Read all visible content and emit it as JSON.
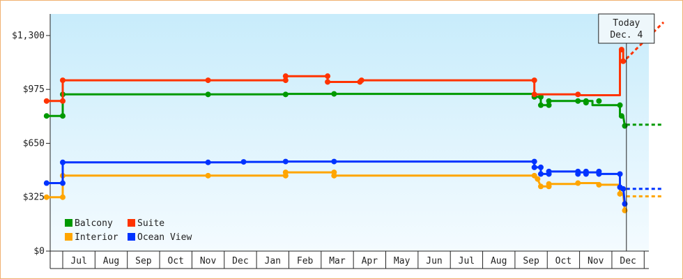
{
  "colors": {
    "balcony": "#009900",
    "suite": "#ff3300",
    "interior": "#ffa500",
    "ocean_view": "#0033ff",
    "bg_top": "#c8ecfb",
    "bg_bottom": "#f4fbff"
  },
  "today_label": {
    "line1": "Today",
    "line2": "Dec. 4"
  },
  "chart_data": {
    "type": "line",
    "step": true,
    "ylim": [
      0,
      1430
    ],
    "yticks": [
      0,
      325,
      650,
      975,
      1300
    ],
    "ytick_labels": [
      "$0",
      "$325",
      "$650",
      "$975",
      "$1,300"
    ],
    "xlabels": [
      "Jul",
      "Aug",
      "Sep",
      "Oct",
      "Nov",
      "Dec",
      "Jan",
      "Feb",
      "Mar",
      "Apr",
      "May",
      "Jun",
      "Jul",
      "Aug",
      "Sep",
      "Oct",
      "Nov",
      "Dec"
    ],
    "grid": false,
    "legend_position": "bottom-left",
    "today_x": 17.45,
    "projection_end_x": 18.6,
    "series": [
      {
        "name": "Balcony",
        "color": "balcony",
        "points": [
          [
            -0.5,
            815
          ],
          [
            0,
            815
          ],
          [
            0,
            945
          ],
          [
            4.5,
            945
          ],
          [
            6.9,
            945
          ],
          [
            6.9,
            948
          ],
          [
            8.4,
            948
          ],
          [
            14.6,
            948
          ],
          [
            14.6,
            930
          ],
          [
            14.8,
            930
          ],
          [
            14.8,
            880
          ],
          [
            15.05,
            880
          ],
          [
            15.05,
            905
          ],
          [
            16.2,
            905
          ],
          [
            16.4,
            905
          ],
          [
            16.4,
            880
          ],
          [
            17.25,
            880
          ],
          [
            17.25,
            815
          ],
          [
            17.35,
            815
          ],
          [
            17.4,
            755
          ],
          [
            17.45,
            755
          ]
        ],
        "markers": [
          [
            -0.5,
            815
          ],
          [
            0,
            815
          ],
          [
            0,
            945
          ],
          [
            4.5,
            945
          ],
          [
            6.9,
            945
          ],
          [
            8.4,
            948
          ],
          [
            14.6,
            930
          ],
          [
            14.8,
            930
          ],
          [
            14.8,
            880
          ],
          [
            15.05,
            880
          ],
          [
            15.05,
            905
          ],
          [
            15.95,
            905
          ],
          [
            16.2,
            905
          ],
          [
            16.2,
            895
          ],
          [
            16.6,
            905
          ],
          [
            17.25,
            880
          ],
          [
            17.3,
            815
          ],
          [
            17.4,
            755
          ]
        ],
        "projection": [
          [
            17.45,
            762
          ],
          [
            18.6,
            762
          ]
        ]
      },
      {
        "name": "Suite",
        "color": "suite",
        "points": [
          [
            -0.5,
            905
          ],
          [
            0,
            905
          ],
          [
            0,
            1030
          ],
          [
            4.5,
            1030
          ],
          [
            6.9,
            1030
          ],
          [
            6.9,
            1055
          ],
          [
            8.2,
            1055
          ],
          [
            8.2,
            1020
          ],
          [
            9.2,
            1020
          ],
          [
            9.2,
            1030
          ],
          [
            14.6,
            1030
          ],
          [
            14.6,
            945
          ],
          [
            15.9,
            945
          ],
          [
            15.9,
            940
          ],
          [
            17.25,
            940
          ],
          [
            17.25,
            1215
          ],
          [
            17.35,
            1215
          ],
          [
            17.35,
            1145
          ],
          [
            17.45,
            1145
          ]
        ],
        "markers": [
          [
            -0.5,
            905
          ],
          [
            0,
            905
          ],
          [
            0,
            1030
          ],
          [
            4.5,
            1030
          ],
          [
            6.9,
            1030
          ],
          [
            6.9,
            1055
          ],
          [
            8.2,
            1055
          ],
          [
            8.2,
            1020
          ],
          [
            9.2,
            1020
          ],
          [
            9.25,
            1030
          ],
          [
            14.6,
            1030
          ],
          [
            14.6,
            945
          ],
          [
            15.95,
            945
          ],
          [
            17.3,
            1215
          ],
          [
            17.35,
            1145
          ]
        ],
        "projection": [
          [
            17.45,
            1160
          ],
          [
            18.6,
            1380
          ]
        ]
      },
      {
        "name": "Interior",
        "color": "interior",
        "points": [
          [
            -0.5,
            325
          ],
          [
            0,
            325
          ],
          [
            0,
            455
          ],
          [
            4.5,
            455
          ],
          [
            6.9,
            455
          ],
          [
            6.9,
            475
          ],
          [
            8.4,
            475
          ],
          [
            8.4,
            455
          ],
          [
            14.6,
            455
          ],
          [
            14.7,
            435
          ],
          [
            14.8,
            390
          ],
          [
            15.05,
            390
          ],
          [
            15.05,
            405
          ],
          [
            15.95,
            405
          ],
          [
            15.95,
            410
          ],
          [
            16.6,
            410
          ],
          [
            16.6,
            400
          ],
          [
            17.25,
            400
          ],
          [
            17.25,
            345
          ],
          [
            17.35,
            345
          ],
          [
            17.4,
            245
          ],
          [
            17.45,
            245
          ]
        ],
        "markers": [
          [
            -0.5,
            325
          ],
          [
            0,
            325
          ],
          [
            0,
            455
          ],
          [
            4.5,
            455
          ],
          [
            6.9,
            455
          ],
          [
            6.9,
            475
          ],
          [
            8.4,
            475
          ],
          [
            8.4,
            455
          ],
          [
            14.6,
            455
          ],
          [
            14.7,
            435
          ],
          [
            14.8,
            390
          ],
          [
            15.05,
            390
          ],
          [
            15.05,
            405
          ],
          [
            15.95,
            410
          ],
          [
            16.6,
            400
          ],
          [
            17.25,
            345
          ],
          [
            17.4,
            245
          ]
        ],
        "projection": [
          [
            17.45,
            330
          ],
          [
            18.6,
            330
          ]
        ]
      },
      {
        "name": "Ocean View",
        "color": "ocean_view",
        "points": [
          [
            -0.5,
            410
          ],
          [
            0,
            410
          ],
          [
            0,
            535
          ],
          [
            4.5,
            535
          ],
          [
            5.6,
            535
          ],
          [
            5.6,
            538
          ],
          [
            6.9,
            538
          ],
          [
            6.9,
            540
          ],
          [
            8.4,
            540
          ],
          [
            14.6,
            540
          ],
          [
            14.6,
            505
          ],
          [
            14.8,
            505
          ],
          [
            14.8,
            465
          ],
          [
            15.05,
            465
          ],
          [
            15.05,
            480
          ],
          [
            15.95,
            480
          ],
          [
            15.95,
            475
          ],
          [
            16.6,
            475
          ],
          [
            16.6,
            465
          ],
          [
            17.25,
            465
          ],
          [
            17.25,
            385
          ],
          [
            17.35,
            385
          ],
          [
            17.4,
            285
          ],
          [
            17.45,
            285
          ]
        ],
        "markers": [
          [
            -0.5,
            410
          ],
          [
            0,
            410
          ],
          [
            0,
            535
          ],
          [
            4.5,
            535
          ],
          [
            5.6,
            538
          ],
          [
            6.9,
            540
          ],
          [
            8.4,
            540
          ],
          [
            14.6,
            540
          ],
          [
            14.6,
            505
          ],
          [
            14.8,
            505
          ],
          [
            14.8,
            465
          ],
          [
            15.05,
            465
          ],
          [
            15.05,
            480
          ],
          [
            15.95,
            480
          ],
          [
            15.95,
            465
          ],
          [
            16.2,
            480
          ],
          [
            16.2,
            465
          ],
          [
            16.6,
            480
          ],
          [
            16.6,
            465
          ],
          [
            17.25,
            465
          ],
          [
            17.25,
            385
          ],
          [
            17.35,
            375
          ],
          [
            17.4,
            285
          ]
        ],
        "projection": [
          [
            17.45,
            375
          ],
          [
            18.6,
            375
          ]
        ]
      }
    ]
  }
}
